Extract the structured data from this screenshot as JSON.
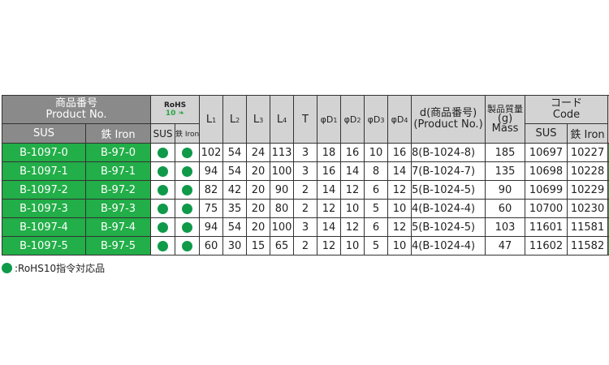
{
  "header": {
    "product_no_ja": "商品番号",
    "product_no_en": "Product No.",
    "sus": "SUS",
    "iron": "鉄 Iron",
    "rohs_top": "RoHS",
    "rohs_num": "10",
    "rohs_sus": "SUS",
    "rohs_iron": "鉄 Iron",
    "dims": [
      {
        "b": "L",
        "s": "1"
      },
      {
        "b": "L",
        "s": "2"
      },
      {
        "b": "L",
        "s": "3"
      },
      {
        "b": "L",
        "s": "4"
      },
      {
        "b": "T",
        "s": ""
      },
      {
        "b": "φD",
        "s": "1"
      },
      {
        "b": "φD",
        "s": "2"
      },
      {
        "b": "φD",
        "s": "3"
      },
      {
        "b": "φD",
        "s": "4"
      }
    ],
    "d_ja": "d(商品番号)",
    "d_en": "(Product No.)",
    "mass_ja": "製品質量",
    "mass_unit": "(g)",
    "mass_en": "Mass",
    "code_ja": "コード",
    "code_en": "Code",
    "code_sus": "SUS",
    "code_iron": "鉄 Iron"
  },
  "rows": [
    {
      "sus": "B-1097-0",
      "iron": "B-97-0",
      "rohs_sus": true,
      "rohs_iron": true,
      "v": [
        "102",
        "54",
        "24",
        "113",
        "3",
        "18",
        "16",
        "10",
        "16"
      ],
      "d": "8(B-1024-8)",
      "mass": "185",
      "code_sus": "10697",
      "code_iron": "10227"
    },
    {
      "sus": "B-1097-1",
      "iron": "B-97-1",
      "rohs_sus": true,
      "rohs_iron": true,
      "v": [
        "94",
        "54",
        "20",
        "100",
        "3",
        "16",
        "14",
        "8",
        "14"
      ],
      "d": "7(B-1024-7)",
      "mass": "135",
      "code_sus": "10698",
      "code_iron": "10228"
    },
    {
      "sus": "B-1097-2",
      "iron": "B-97-2",
      "rohs_sus": true,
      "rohs_iron": true,
      "v": [
        "82",
        "42",
        "20",
        "90",
        "2",
        "14",
        "12",
        "6",
        "12"
      ],
      "d": "5(B-1024-5)",
      "mass": "90",
      "code_sus": "10699",
      "code_iron": "10229"
    },
    {
      "sus": "B-1097-3",
      "iron": "B-97-3",
      "rohs_sus": true,
      "rohs_iron": true,
      "v": [
        "75",
        "35",
        "20",
        "80",
        "2",
        "12",
        "10",
        "5",
        "10"
      ],
      "d": "4(B-1024-4)",
      "mass": "60",
      "code_sus": "10700",
      "code_iron": "10230"
    },
    {
      "sus": "B-1097-4",
      "iron": "B-97-4",
      "rohs_sus": true,
      "rohs_iron": true,
      "v": [
        "94",
        "54",
        "20",
        "100",
        "3",
        "14",
        "12",
        "6",
        "12"
      ],
      "d": "5(B-1024-5)",
      "mass": "103",
      "code_sus": "11601",
      "code_iron": "11581"
    },
    {
      "sus": "B-1097-5",
      "iron": "B-97-5",
      "rohs_sus": true,
      "rohs_iron": true,
      "v": [
        "60",
        "30",
        "15",
        "65",
        "2",
        "12",
        "10",
        "5",
        "10"
      ],
      "d": "4(B-1024-4)",
      "mass": "47",
      "code_sus": "11602",
      "code_iron": "11582"
    }
  ],
  "footnote": ":RoHS10指令対応品",
  "colors": {
    "green": "#22ae48",
    "dot": "#0f9a49",
    "header_dark": "#8a8a8a",
    "header_light": "#d3d3d3"
  }
}
